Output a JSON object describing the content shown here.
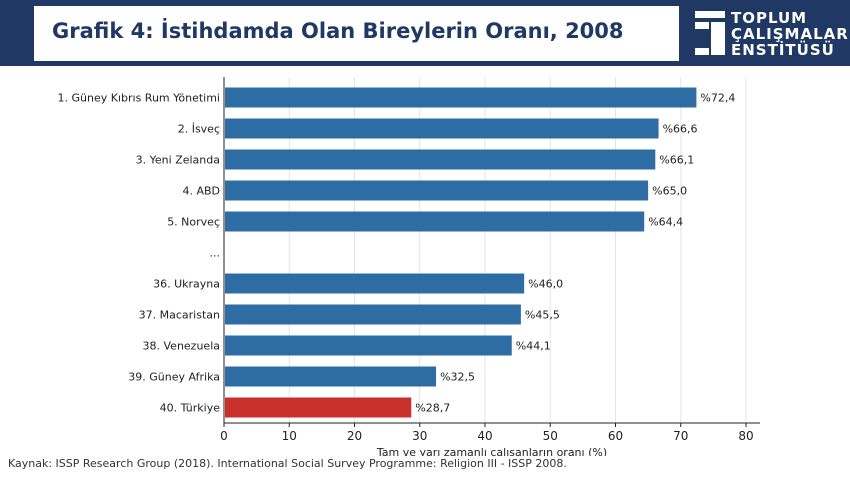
{
  "header": {
    "title": "Grafik 4: İstihdamda Olan Bireylerin Oranı, 2008",
    "logo_lines": [
      "TOPLUM",
      "ÇALIŞMALARI",
      "ENSTİTÜSÜ"
    ]
  },
  "colors": {
    "header_bg": "#1f3864",
    "bar_default": "#2e6da4",
    "bar_highlight": "#c9302c"
  },
  "source": "Kaynak: ISSP Research Group (2018). International Social Survey Programme: Religion III - ISSP 2008.",
  "chart_data": {
    "type": "bar",
    "orientation": "horizontal",
    "title": "Grafik 4: İstihdamda Olan Bireylerin Oranı, 2008",
    "xlabel": "Tam ve yarı zamanlı çalışanların oranı (%)",
    "ylabel": "",
    "xlim": [
      0,
      80
    ],
    "xticks": [
      0,
      10,
      20,
      30,
      40,
      50,
      60,
      70,
      80
    ],
    "grid": "vertical",
    "categories": [
      "1. Güney Kıbrıs Rum Yönetimi",
      "2. İsveç",
      "3. Yeni Zelanda",
      "4. ABD",
      "5. Norveç",
      "...",
      "36. Ukrayna",
      "37. Macaristan",
      "38. Venezuela",
      "39. Güney Afrika",
      "40. Türkiye"
    ],
    "values": [
      72.4,
      66.6,
      66.1,
      65.0,
      64.4,
      null,
      46.0,
      45.5,
      44.1,
      32.5,
      28.7
    ],
    "data_labels": [
      "%72,4",
      "%66,6",
      "%66,1",
      "%65,0",
      "%64,4",
      "",
      "%46,0",
      "%45,5",
      "%44,1",
      "%32,5",
      "%28,7"
    ],
    "highlight": [
      "40. Türkiye"
    ]
  }
}
